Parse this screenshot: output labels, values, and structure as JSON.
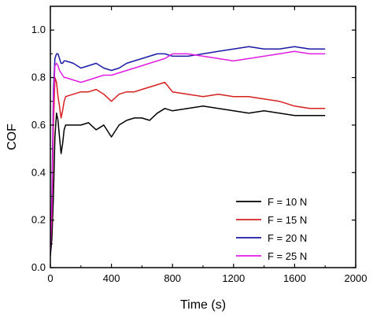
{
  "chart_data": {
    "type": "line",
    "xlabel": "Time (s)",
    "ylabel": "COF",
    "xlim": [
      0,
      2000
    ],
    "ylim": [
      0.0,
      1.1
    ],
    "xticks": [
      0,
      400,
      800,
      1200,
      1600,
      2000
    ],
    "yticks": [
      0.0,
      0.2,
      0.4,
      0.6,
      0.8,
      1.0
    ],
    "xtick_labels": [
      "0",
      "400",
      "800",
      "1200",
      "1600",
      "2000"
    ],
    "ytick_labels": [
      "0.0",
      "0.2",
      "0.4",
      "0.6",
      "0.8",
      "1.0"
    ],
    "grid": false,
    "legend_position": "bottom-right",
    "series": [
      {
        "name": "F = 10 N",
        "color": "#000000",
        "x": [
          0,
          10,
          20,
          30,
          40,
          50,
          60,
          70,
          80,
          90,
          100,
          150,
          200,
          250,
          300,
          350,
          400,
          450,
          500,
          550,
          600,
          650,
          700,
          750,
          800,
          900,
          1000,
          1100,
          1200,
          1300,
          1400,
          1500,
          1600,
          1700,
          1800
        ],
        "y": [
          0.05,
          0.12,
          0.3,
          0.55,
          0.65,
          0.62,
          0.55,
          0.48,
          0.52,
          0.58,
          0.6,
          0.6,
          0.6,
          0.61,
          0.58,
          0.6,
          0.55,
          0.6,
          0.62,
          0.63,
          0.63,
          0.62,
          0.65,
          0.67,
          0.66,
          0.67,
          0.68,
          0.67,
          0.66,
          0.65,
          0.66,
          0.65,
          0.64,
          0.64,
          0.64
        ]
      },
      {
        "name": "F = 15 N",
        "color": "#d62020",
        "x": [
          0,
          10,
          20,
          30,
          40,
          50,
          60,
          70,
          80,
          90,
          100,
          150,
          200,
          250,
          300,
          350,
          400,
          450,
          500,
          550,
          600,
          650,
          700,
          750,
          800,
          900,
          1000,
          1100,
          1200,
          1300,
          1400,
          1500,
          1600,
          1700,
          1800
        ],
        "y": [
          0.08,
          0.2,
          0.6,
          0.8,
          0.78,
          0.72,
          0.68,
          0.63,
          0.66,
          0.7,
          0.72,
          0.73,
          0.74,
          0.74,
          0.75,
          0.73,
          0.7,
          0.73,
          0.74,
          0.74,
          0.75,
          0.76,
          0.77,
          0.78,
          0.74,
          0.73,
          0.72,
          0.73,
          0.72,
          0.72,
          0.71,
          0.7,
          0.68,
          0.67,
          0.67
        ]
      },
      {
        "name": "F = 20 N",
        "color": "#1a1aa6",
        "x": [
          0,
          10,
          20,
          30,
          40,
          50,
          60,
          70,
          80,
          90,
          100,
          150,
          200,
          250,
          300,
          350,
          400,
          450,
          500,
          550,
          600,
          650,
          700,
          750,
          800,
          900,
          1000,
          1100,
          1200,
          1300,
          1400,
          1500,
          1600,
          1700,
          1800
        ],
        "y": [
          0.06,
          0.3,
          0.75,
          0.88,
          0.9,
          0.9,
          0.88,
          0.86,
          0.86,
          0.87,
          0.87,
          0.86,
          0.84,
          0.85,
          0.86,
          0.84,
          0.83,
          0.84,
          0.86,
          0.87,
          0.88,
          0.89,
          0.9,
          0.9,
          0.89,
          0.89,
          0.9,
          0.91,
          0.92,
          0.93,
          0.92,
          0.92,
          0.93,
          0.92,
          0.92
        ]
      },
      {
        "name": "F = 25 N",
        "color": "#e21ce2",
        "x": [
          0,
          10,
          20,
          30,
          40,
          50,
          60,
          70,
          80,
          90,
          100,
          150,
          200,
          250,
          300,
          350,
          400,
          450,
          500,
          550,
          600,
          650,
          700,
          750,
          800,
          900,
          1000,
          1100,
          1200,
          1300,
          1400,
          1500,
          1600,
          1700,
          1800
        ],
        "y": [
          0.07,
          0.25,
          0.7,
          0.85,
          0.86,
          0.85,
          0.83,
          0.82,
          0.81,
          0.8,
          0.8,
          0.79,
          0.78,
          0.79,
          0.8,
          0.81,
          0.81,
          0.82,
          0.83,
          0.84,
          0.85,
          0.86,
          0.87,
          0.88,
          0.9,
          0.9,
          0.89,
          0.88,
          0.87,
          0.88,
          0.89,
          0.9,
          0.91,
          0.9,
          0.9
        ]
      }
    ]
  }
}
